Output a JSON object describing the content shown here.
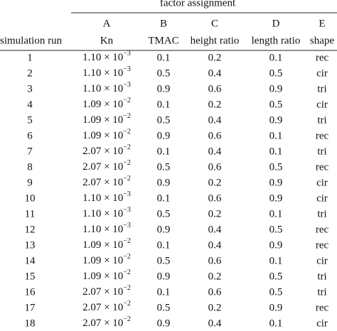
{
  "header": {
    "group": "factor assignment",
    "run": "simulation run",
    "columns": [
      {
        "letter": "A",
        "name": "Kn"
      },
      {
        "letter": "B",
        "name": "TMAC"
      },
      {
        "letter": "C",
        "name": "height ratio"
      },
      {
        "letter": "D",
        "name": "length ratio"
      },
      {
        "letter": "E",
        "name": "shape"
      }
    ]
  },
  "rows": [
    {
      "run": "1",
      "kn": {
        "base": "1.10 × 10",
        "exp": "−3"
      },
      "tmac": "0.1",
      "height": "0.2",
      "length": "0.1",
      "shape": "rec"
    },
    {
      "run": "2",
      "kn": {
        "base": "1.10 × 10",
        "exp": "−3"
      },
      "tmac": "0.5",
      "height": "0.4",
      "length": "0.5",
      "shape": "cir"
    },
    {
      "run": "3",
      "kn": {
        "base": "1.10 × 10",
        "exp": "−3"
      },
      "tmac": "0.9",
      "height": "0.6",
      "length": "0.9",
      "shape": "tri"
    },
    {
      "run": "4",
      "kn": {
        "base": "1.09 × 10",
        "exp": "−2"
      },
      "tmac": "0.1",
      "height": "0.2",
      "length": "0.5",
      "shape": "cir"
    },
    {
      "run": "5",
      "kn": {
        "base": "1.09 × 10",
        "exp": "−2"
      },
      "tmac": "0.5",
      "height": "0.4",
      "length": "0.9",
      "shape": "tri"
    },
    {
      "run": "6",
      "kn": {
        "base": "1.09 × 10",
        "exp": "−2"
      },
      "tmac": "0.9",
      "height": "0.6",
      "length": "0.1",
      "shape": "rec"
    },
    {
      "run": "7",
      "kn": {
        "base": "2.07 × 10",
        "exp": "−2"
      },
      "tmac": "0.1",
      "height": "0.4",
      "length": "0.1",
      "shape": "tri"
    },
    {
      "run": "8",
      "kn": {
        "base": "2.07 × 10",
        "exp": "−2"
      },
      "tmac": "0.5",
      "height": "0.6",
      "length": "0.5",
      "shape": "rec"
    },
    {
      "run": "9",
      "kn": {
        "base": "2.07 × 10",
        "exp": "−2"
      },
      "tmac": "0.9",
      "height": "0.2",
      "length": "0.9",
      "shape": "cir"
    },
    {
      "run": "10",
      "kn": {
        "base": "1.10 × 10",
        "exp": "−3"
      },
      "tmac": "0.1",
      "height": "0.6",
      "length": "0.9",
      "shape": "cir"
    },
    {
      "run": "11",
      "kn": {
        "base": "1.10 × 10",
        "exp": "−3"
      },
      "tmac": "0.5",
      "height": "0.2",
      "length": "0.1",
      "shape": "tri"
    },
    {
      "run": "12",
      "kn": {
        "base": "1.10 × 10",
        "exp": "−3"
      },
      "tmac": "0.9",
      "height": "0.4",
      "length": "0.5",
      "shape": "rec"
    },
    {
      "run": "13",
      "kn": {
        "base": "1.09 × 10",
        "exp": "−2"
      },
      "tmac": "0.1",
      "height": "0.4",
      "length": "0.9",
      "shape": "rec"
    },
    {
      "run": "14",
      "kn": {
        "base": "1.09 × 10",
        "exp": "−2"
      },
      "tmac": "0.5",
      "height": "0.6",
      "length": "0.1",
      "shape": "cir"
    },
    {
      "run": "15",
      "kn": {
        "base": "1.09 × 10",
        "exp": "−2"
      },
      "tmac": "0.9",
      "height": "0.2",
      "length": "0.5",
      "shape": "tri"
    },
    {
      "run": "16",
      "kn": {
        "base": "2.07 × 10",
        "exp": "−2"
      },
      "tmac": "0.1",
      "height": "0.6",
      "length": "0.5",
      "shape": "tri"
    },
    {
      "run": "17",
      "kn": {
        "base": "2.07 × 10",
        "exp": "−2"
      },
      "tmac": "0.5",
      "height": "0.2",
      "length": "0.9",
      "shape": "rec"
    },
    {
      "run": "18",
      "kn": {
        "base": "2.07 × 10",
        "exp": "−2"
      },
      "tmac": "0.9",
      "height": "0.4",
      "length": "0.1",
      "shape": "cir"
    }
  ]
}
